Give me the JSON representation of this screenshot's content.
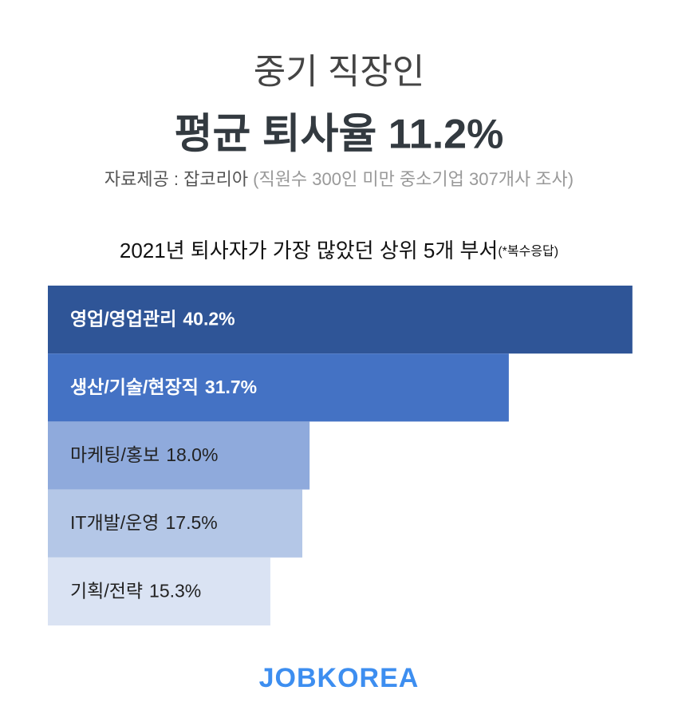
{
  "header": {
    "kicker": "중기 직장인",
    "headline": "평균 퇴사율 11.2%",
    "source": "자료제공 : 잡코리아",
    "source_note": "(직원수 300인 미만 중소기업 307개사 조사)"
  },
  "chart_data": {
    "type": "bar",
    "orientation": "horizontal",
    "title": "2021년 퇴사자가 가장 많았던 상위 5개 부서",
    "title_note": "(*복수응답)",
    "categories": [
      "영업/영업관리",
      "생산/기술/현장직",
      "마케팅/홍보",
      "IT개발/운영",
      "기획/전략"
    ],
    "values": [
      40.2,
      31.7,
      18.0,
      17.5,
      15.3
    ],
    "value_labels": [
      "40.2%",
      "31.7%",
      "18.0%",
      "17.5%",
      "15.3%"
    ],
    "colors": [
      "#2f5597",
      "#4472c4",
      "#8faadc",
      "#b4c7e7",
      "#dae3f3"
    ]
  },
  "footer": {
    "brand": "JOBKOREA"
  }
}
